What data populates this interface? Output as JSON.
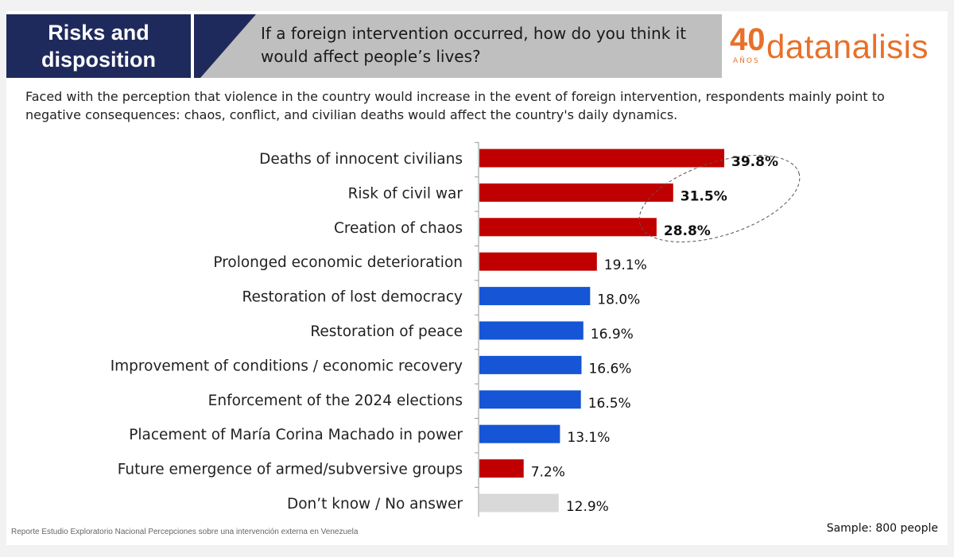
{
  "header": {
    "section_title": "Risks and\ndisposition",
    "question": "If a foreign intervention occurred, how do you think it would affect people’s lives?"
  },
  "logo": {
    "anniversary": "40",
    "anniversary_sub": "AÑOS",
    "brand": "datanalisis"
  },
  "subtitle": "Faced with the perception that violence in the country would increase in the event of foreign intervention, respondents mainly point to negative consequences: chaos, conflict, and civilian deaths would affect the country's daily dynamics.",
  "footer": {
    "source": "Reporte Estudio Exploratorio Nacional Percepciones sobre una intervención externa en Venezuela",
    "sample": "Sample: 800 people"
  },
  "colors": {
    "negative": "#c00000",
    "positive": "#1555d6",
    "neutral": "#d9d9d9",
    "highlight_ellipse": "#555555"
  },
  "chart_data": {
    "type": "bar",
    "orientation": "horizontal",
    "unit": "%",
    "xlim": [
      0,
      40
    ],
    "categories": [
      "Deaths of innocent civilians",
      "Risk of civil war",
      "Creation of chaos",
      "Prolonged economic deterioration",
      "Restoration of lost democracy",
      "Restoration of peace",
      "Improvement of conditions / economic recovery",
      "Enforcement of the 2024 elections",
      "Placement of María Corina Machado in power",
      "Future emergence of armed/subversive groups",
      "Don’t know / No answer"
    ],
    "values": [
      39.8,
      31.5,
      28.8,
      19.1,
      18.0,
      16.9,
      16.6,
      16.5,
      13.1,
      7.2,
      12.9
    ],
    "labels": [
      "39.8%",
      "31.5%",
      "28.8%",
      "19.1%",
      "18.0%",
      "16.9%",
      "16.6%",
      "16.5%",
      "13.1%",
      "7.2%",
      "12.9%"
    ],
    "bar_types": [
      "negative",
      "negative",
      "negative",
      "negative",
      "positive",
      "positive",
      "positive",
      "positive",
      "positive",
      "negative",
      "neutral"
    ],
    "bold_labels": [
      true,
      true,
      true,
      false,
      false,
      false,
      false,
      false,
      false,
      false,
      false
    ],
    "highlighted": [
      0,
      1,
      2
    ]
  }
}
